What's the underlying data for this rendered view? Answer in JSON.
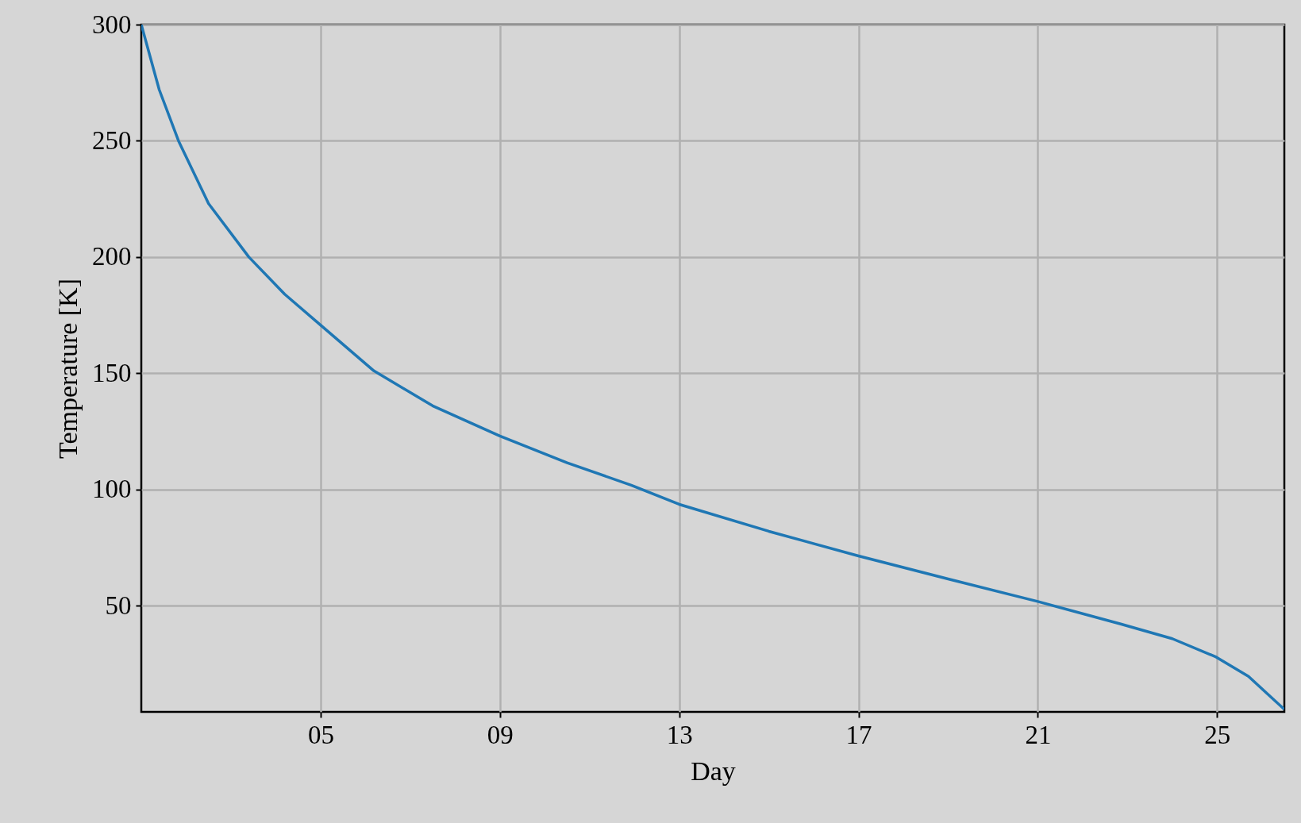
{
  "chart_data": {
    "type": "line",
    "xlabel": "Day",
    "ylabel": "Temperature [K]",
    "x": [
      1,
      1.4,
      1.83,
      2.5,
      3.4,
      4.2,
      5,
      6.19,
      7.5,
      9,
      10.5,
      11.93,
      13,
      15,
      17,
      19,
      21,
      22.85,
      24,
      24.98,
      25.7,
      26.2,
      26.5
    ],
    "series": [
      {
        "color": "#1f77b4",
        "values": [
          300,
          272,
          250,
          223,
          200,
          184,
          170.7,
          151,
          136,
          123,
          111.5,
          101.8,
          93.6,
          82,
          71.4,
          61.5,
          51.8,
          42.1,
          35.8,
          27.9,
          19.6,
          10.7,
          5.4
        ]
      }
    ],
    "xlim": [
      1,
      26.5
    ],
    "ylim": [
      4.3,
      300
    ],
    "xticks": [
      {
        "value": 5,
        "label": "05"
      },
      {
        "value": 9,
        "label": "09"
      },
      {
        "value": 13,
        "label": "13"
      },
      {
        "value": 17,
        "label": "17"
      },
      {
        "value": 21,
        "label": "21"
      },
      {
        "value": 25,
        "label": "25"
      }
    ],
    "yticks": [
      50,
      100,
      150,
      200,
      250,
      300
    ],
    "grid": true,
    "line_style": "solid",
    "marker": "none"
  }
}
